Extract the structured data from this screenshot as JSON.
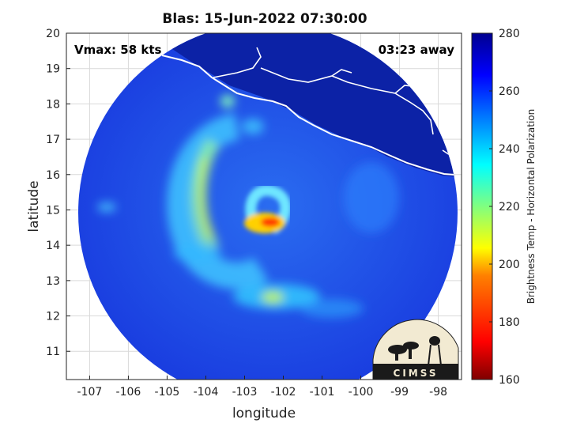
{
  "chart_data": {
    "type": "heatmap",
    "title": "Blas: 15-Jun-2022 07:30:00",
    "xlabel": "longitude",
    "ylabel": "latitude",
    "xlim": [
      -107.6,
      -97.4
    ],
    "ylim": [
      10.2,
      20
    ],
    "xticks": [
      -107,
      -106,
      -105,
      -104,
      -103,
      -102,
      -101,
      -100,
      -99,
      -98
    ],
    "yticks": [
      11,
      12,
      13,
      14,
      15,
      16,
      17,
      18,
      19,
      20
    ],
    "grid": true,
    "annotations": {
      "left": "Vmax: 58 kts",
      "right": "03:23 away"
    },
    "logo_text": "CIMSS",
    "colorbar": {
      "label": "Brightness Temp - Horizontal Polarization",
      "range": [
        160,
        280
      ],
      "ticks": [
        160,
        180,
        200,
        220,
        240,
        260,
        280
      ],
      "colormap": "jet"
    },
    "swath": {
      "center_lon": -102.6,
      "center_lat": 15.1,
      "radius_deg": 4.9
    },
    "features": [
      {
        "name": "storm center warm core",
        "lon": -102.3,
        "lat": 14.6,
        "value": 195
      },
      {
        "name": "inner ring",
        "lon": -102.6,
        "lat": 14.9,
        "value": 220
      },
      {
        "name": "western spiral band",
        "lon": -104.0,
        "lat": 15.6,
        "value": 225
      },
      {
        "name": "southern band",
        "lon": -102.3,
        "lat": 12.5,
        "value": 215
      },
      {
        "name": "coastal land",
        "lon": -100.5,
        "lat": 18.5,
        "value": 268
      },
      {
        "name": "open ocean background",
        "lon": -100.0,
        "lat": 13.0,
        "value": 258
      }
    ]
  },
  "colors": {
    "background_ocean": "#1e40e6",
    "land": "#0a1c9a",
    "coastline": "#ffffff",
    "grid": "#d9d9d9"
  }
}
